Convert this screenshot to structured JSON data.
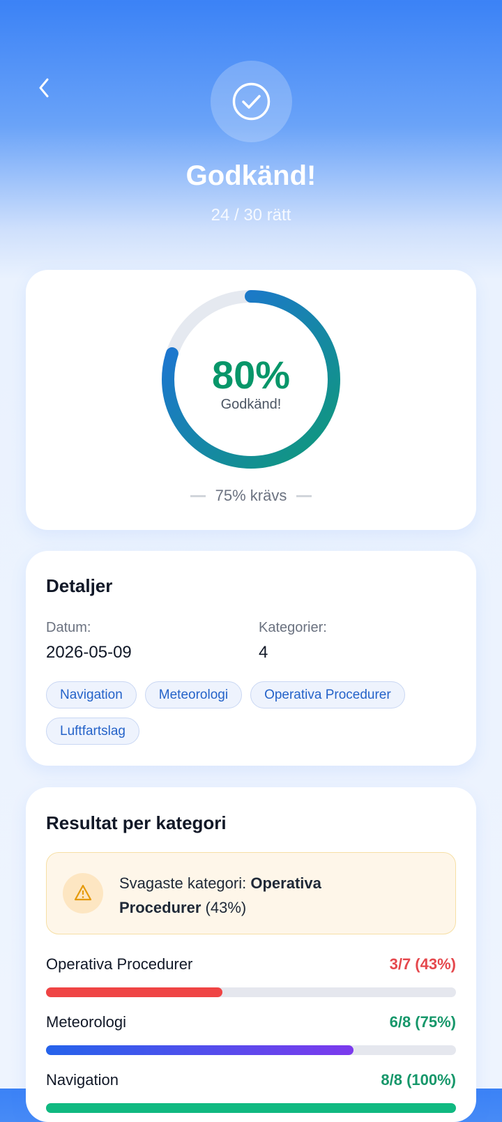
{
  "header": {
    "title": "Godkänd!",
    "subtitle": "24 / 30 rätt"
  },
  "score_ring": {
    "value": 80,
    "label": "80%",
    "status": "Godkänd!",
    "lim": [
      0,
      100
    ],
    "required": "75% krävs",
    "colors": [
      "#1f6fe0",
      "#0f9a78"
    ]
  },
  "details": {
    "title": "Detaljer",
    "date_label": "Datum:",
    "date": "2026-05-09",
    "categories_label": "Kategorier:",
    "categories_count": "4",
    "tags": [
      "Navigation",
      "Meteorologi",
      "Operativa Procedurer",
      "Luftfartslag"
    ]
  },
  "results": {
    "title": "Resultat per kategori",
    "lim": [
      0,
      100
    ],
    "weakest": {
      "prefix": "Svagaste kategori:",
      "name": "Operativa Procedurer",
      "percent": "(43%)"
    },
    "rows": [
      {
        "name": "Operativa Procedurer",
        "label": "3/7 (43%)",
        "value": 43,
        "color": [
          "#ef4444",
          "#ef4444"
        ],
        "label_color": "#e5484d"
      },
      {
        "name": "Meteorologi",
        "label": "6/8 (75%)",
        "value": 75,
        "color": [
          "#2563eb",
          "#7c3aed"
        ],
        "label_color": "#16976a"
      },
      {
        "name": "Navigation",
        "label": "8/8 (100%)",
        "value": 100,
        "color": [
          "#10b981",
          "#10b981"
        ],
        "label_color": "#16976a"
      }
    ]
  }
}
